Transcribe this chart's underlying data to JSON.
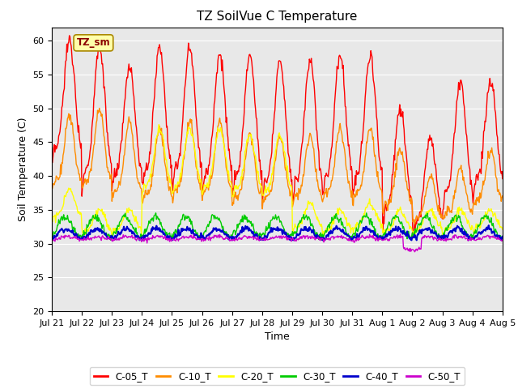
{
  "title": "TZ SoilVue C Temperature",
  "xlabel": "Time",
  "ylabel": "Soil Temperature (C)",
  "ylim": [
    20,
    62
  ],
  "yticks": [
    20,
    25,
    30,
    35,
    40,
    45,
    50,
    55,
    60
  ],
  "xtick_labels": [
    "Jul 21",
    "Jul 22",
    "Jul 23",
    "Jul 24",
    "Jul 25",
    "Jul 26",
    "Jul 27",
    "Jul 28",
    "Jul 29",
    "Jul 30",
    "Jul 31",
    "Aug 1",
    "Aug 2",
    "Aug 3",
    "Aug 4",
    "Aug 5"
  ],
  "annotation_text": "TZ_sm",
  "bg_color": "#e8e8e8",
  "series_colors": [
    "#ff0000",
    "#ff8c00",
    "#ffff00",
    "#00cc00",
    "#0000cc",
    "#cc00cc"
  ],
  "series_lws": [
    1.0,
    1.0,
    1.0,
    1.0,
    1.5,
    1.0
  ],
  "legend_labels": [
    "C-05_T",
    "C-10_T",
    "C-20_T",
    "C-30_T",
    "C-40_T",
    "C-50_T"
  ],
  "title_fontsize": 11,
  "label_fontsize": 9,
  "tick_fontsize": 8
}
